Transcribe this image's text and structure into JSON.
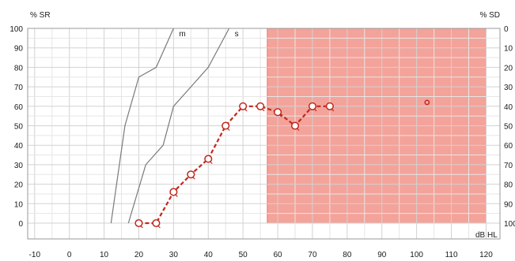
{
  "chart_data": {
    "type": "line",
    "left_axis_title": "% SR",
    "right_axis_title": "% SD",
    "x_unit_label": "dB HL",
    "x_ticks": [
      -10,
      0,
      10,
      20,
      30,
      40,
      50,
      60,
      70,
      80,
      90,
      100,
      110,
      120
    ],
    "xlim": [
      -12,
      124
    ],
    "left_ticks": [
      100,
      90,
      80,
      70,
      60,
      50,
      40,
      30,
      20,
      10,
      0
    ],
    "right_ticks": [
      0,
      10,
      20,
      30,
      40,
      50,
      60,
      70,
      80,
      90,
      100
    ],
    "ylim": [
      0,
      100
    ],
    "grid": true,
    "masked_region": {
      "x_from": 57,
      "x_to": 120,
      "y_from": 0,
      "y_to": 100,
      "color": "#f4a39a",
      "edge_color": "#e8746a"
    },
    "reference_curves": [
      {
        "name": "m",
        "color": "#7a7a7a",
        "x": [
          12,
          16,
          20,
          25,
          30
        ],
        "y": [
          0,
          50,
          75,
          80,
          100
        ]
      },
      {
        "name": "s",
        "color": "#7a7a7a",
        "x": [
          17,
          22,
          27,
          30,
          35,
          40,
          46
        ],
        "y": [
          0,
          30,
          40,
          60,
          70,
          80,
          100
        ]
      }
    ],
    "series": [
      {
        "color": "#c0281e",
        "x": [
          20,
          25,
          30,
          35,
          40,
          45,
          50,
          55,
          60,
          65,
          70,
          75
        ],
        "y": [
          0,
          0,
          16,
          25,
          33,
          50,
          60,
          60,
          57,
          50,
          60,
          60
        ]
      }
    ],
    "extra_point": {
      "x": 103,
      "y": 62,
      "color": "#c0281e"
    }
  }
}
